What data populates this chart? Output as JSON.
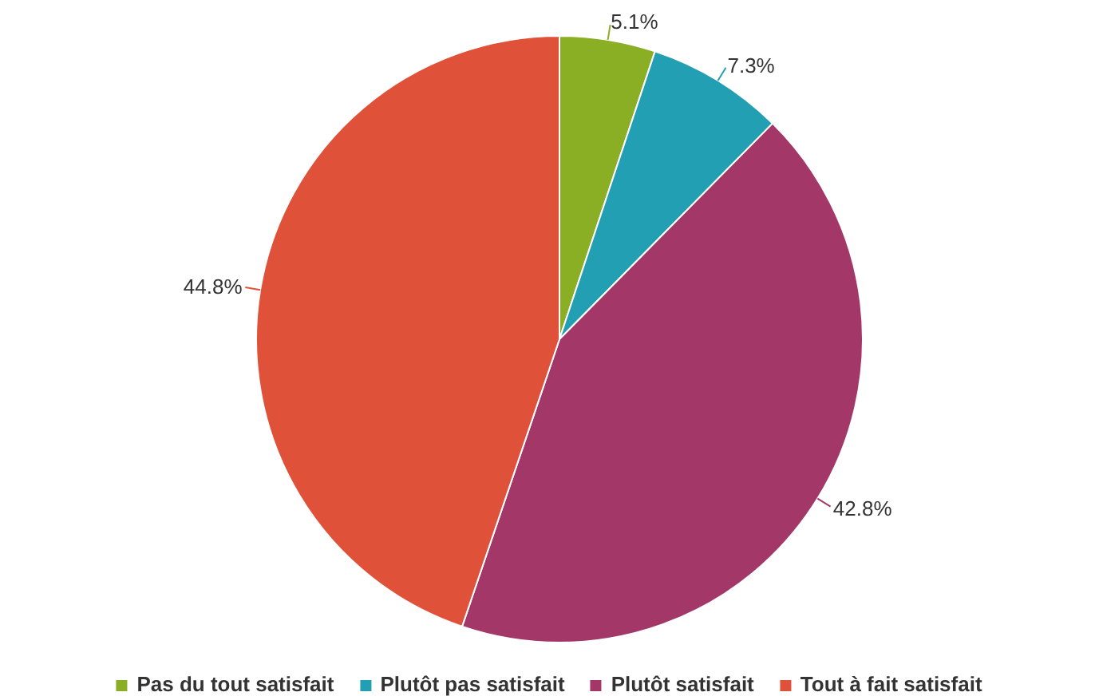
{
  "chart_data": {
    "type": "pie",
    "categories": [
      "Pas du tout satisfait",
      "Plutôt pas satisfait",
      "Plutôt satisfait",
      "Tout à fait satisfait"
    ],
    "values": [
      5.1,
      7.3,
      42.8,
      44.8
    ],
    "value_labels": [
      "5.1%",
      "7.3%",
      "42.8%",
      "44.8%"
    ],
    "colors": [
      "#8aae24",
      "#229fb3",
      "#a33868",
      "#e0513a"
    ],
    "legend": "bottom"
  }
}
